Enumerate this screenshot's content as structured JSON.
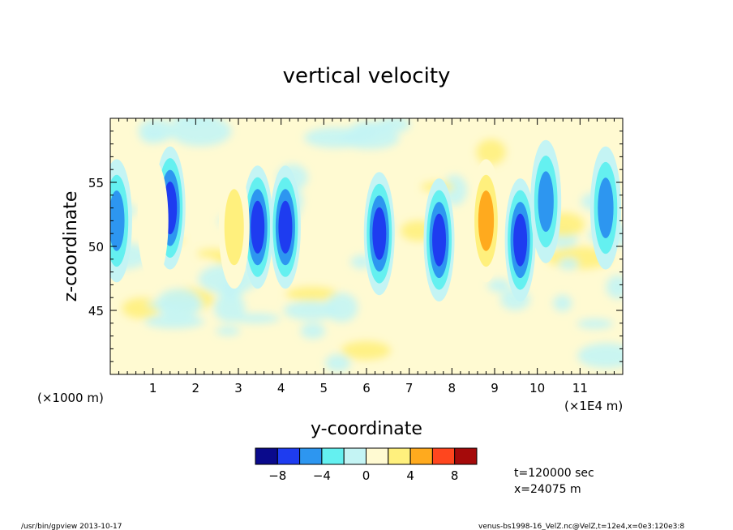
{
  "chart_data": {
    "type": "heatmap",
    "title": "vertical velocity",
    "xlabel": "y-coordinate",
    "ylabel": "z-coordinate",
    "x_scale_note": "(×1000 m)",
    "x_unit_note": "(×1E4 m)",
    "xlim": [
      0,
      12
    ],
    "ylim": [
      40,
      60
    ],
    "xticks": [
      "1",
      "2",
      "3",
      "4",
      "5",
      "6",
      "7",
      "8",
      "9",
      "10",
      "11"
    ],
    "yticks": [
      "45",
      "50",
      "55"
    ],
    "colorbar": {
      "levels": [
        -10,
        -8,
        -6,
        -4,
        -2,
        0,
        2,
        4,
        6,
        8,
        10
      ],
      "labels": [
        "−8",
        "−4",
        "0",
        "4",
        "8"
      ],
      "colors": [
        "#0a0a8c",
        "#1e3cf0",
        "#2d96f0",
        "#64f0f0",
        "#c4f4f4",
        "#fffad2",
        "#fff07d",
        "#ffaa1e",
        "#ff461e",
        "#a50a0a"
      ]
    },
    "features": [
      {
        "y": 0.15,
        "z": 52.0,
        "value": -7
      },
      {
        "y": 1.4,
        "z": 53.0,
        "value": -8
      },
      {
        "y": 1.0,
        "z": 52.0,
        "value": 2
      },
      {
        "y": 3.45,
        "z": 51.5,
        "value": -8
      },
      {
        "y": 2.9,
        "z": 51.5,
        "value": 5
      },
      {
        "y": 4.1,
        "z": 51.5,
        "value": -8
      },
      {
        "y": 6.3,
        "z": 51.0,
        "value": -9
      },
      {
        "y": 7.7,
        "z": 50.5,
        "value": -9
      },
      {
        "y": 8.8,
        "z": 52.0,
        "value": 6
      },
      {
        "y": 9.6,
        "z": 50.5,
        "value": -8
      },
      {
        "y": 10.2,
        "z": 53.5,
        "value": -7
      },
      {
        "y": 11.6,
        "z": 53.0,
        "value": -7
      }
    ]
  },
  "annotations": {
    "time": "t=120000 sec",
    "position": "x=24075 m",
    "footer_left": "/usr/bin/gpview  2013-10-17",
    "footer_right": "venus-bs1998-16_VelZ.nc@VelZ,t=12e4,x=0e3:120e3:8"
  }
}
